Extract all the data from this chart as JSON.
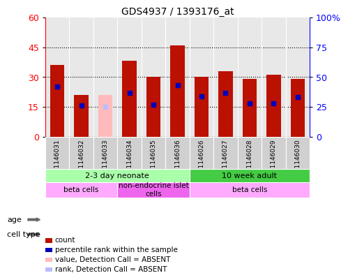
{
  "title": "GDS4937 / 1393176_at",
  "samples": [
    "GSM1146031",
    "GSM1146032",
    "GSM1146033",
    "GSM1146034",
    "GSM1146035",
    "GSM1146036",
    "GSM1146026",
    "GSM1146027",
    "GSM1146028",
    "GSM1146029",
    "GSM1146030"
  ],
  "counts": [
    36,
    21,
    0,
    38,
    30,
    46,
    30,
    33,
    29,
    31,
    29
  ],
  "absent_counts": [
    0,
    0,
    21,
    0,
    0,
    0,
    0,
    0,
    0,
    0,
    0
  ],
  "ranks_pct": [
    42,
    26,
    0,
    37,
    27,
    43,
    34,
    37,
    28,
    28,
    33
  ],
  "absent_ranks_pct": [
    0,
    0,
    25,
    0,
    0,
    0,
    0,
    0,
    0,
    0,
    0
  ],
  "ylim_left": [
    0,
    60
  ],
  "ylim_right": [
    0,
    100
  ],
  "yticks_left": [
    0,
    15,
    30,
    45,
    60
  ],
  "ytick_labels_left": [
    "0",
    "15",
    "30",
    "45",
    "60"
  ],
  "yticks_right": [
    0,
    25,
    50,
    75,
    100
  ],
  "ytick_labels_right": [
    "0",
    "25",
    "50",
    "75",
    "100%"
  ],
  "bar_color": "#bb1100",
  "absent_bar_color": "#ffbbbb",
  "rank_color": "#0000bb",
  "absent_rank_color": "#bbbbff",
  "plot_bg": "#e8e8e8",
  "age_groups": [
    {
      "label": "2-3 day neonate",
      "start": 0,
      "end": 6,
      "color": "#aaffaa"
    },
    {
      "label": "10 week adult",
      "start": 6,
      "end": 11,
      "color": "#44cc44"
    }
  ],
  "cell_type_groups": [
    {
      "label": "beta cells",
      "start": 0,
      "end": 3,
      "color": "#ffaaff"
    },
    {
      "label": "non-endocrine islet\ncells",
      "start": 3,
      "end": 6,
      "color": "#ee66ee"
    },
    {
      "label": "beta cells",
      "start": 6,
      "end": 11,
      "color": "#ffaaff"
    }
  ],
  "legend_items": [
    {
      "label": "count",
      "color": "#bb1100"
    },
    {
      "label": "percentile rank within the sample",
      "color": "#0000bb"
    },
    {
      "label": "value, Detection Call = ABSENT",
      "color": "#ffbbbb"
    },
    {
      "label": "rank, Detection Call = ABSENT",
      "color": "#bbbbff"
    }
  ],
  "age_label": "age",
  "cell_type_label": "cell type"
}
